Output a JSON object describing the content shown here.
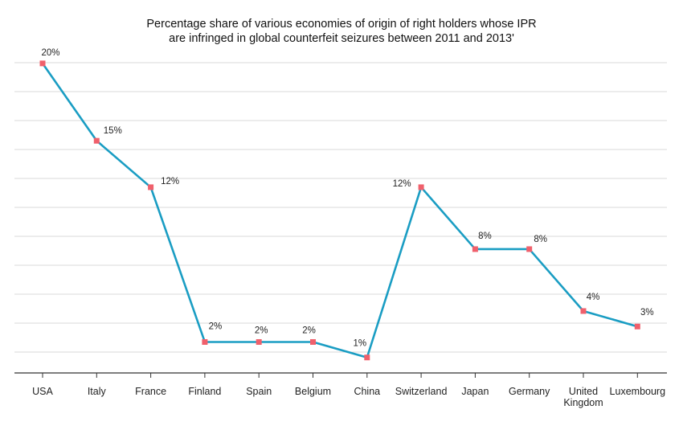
{
  "chart_data": {
    "type": "line",
    "title": [
      "Percentage share of various economies of origin of right holders whose IPR",
      "are infringed in global counterfeit seizures between 2011 and 2013'"
    ],
    "categories": [
      "USA",
      "Italy",
      "France",
      "Finland",
      "Spain",
      "Belgium",
      "China",
      "Switzerland",
      "Japan",
      "Germany",
      "United Kingdom",
      "Luxembourg"
    ],
    "values": [
      20,
      15,
      12,
      2,
      2,
      2,
      1,
      12,
      8,
      8,
      4,
      3
    ],
    "data_labels": [
      "20%",
      "15%",
      "12%",
      "2%",
      "2%",
      "2%",
      "1%",
      "12%",
      "8%",
      "8%",
      "4%",
      "3%"
    ],
    "ylim": [
      0,
      21.5
    ],
    "grid": true,
    "colors": {
      "line": "#1a9dc3",
      "marker": "#f0606c",
      "grid": "#d8d8d8",
      "axis": "#333333"
    }
  }
}
